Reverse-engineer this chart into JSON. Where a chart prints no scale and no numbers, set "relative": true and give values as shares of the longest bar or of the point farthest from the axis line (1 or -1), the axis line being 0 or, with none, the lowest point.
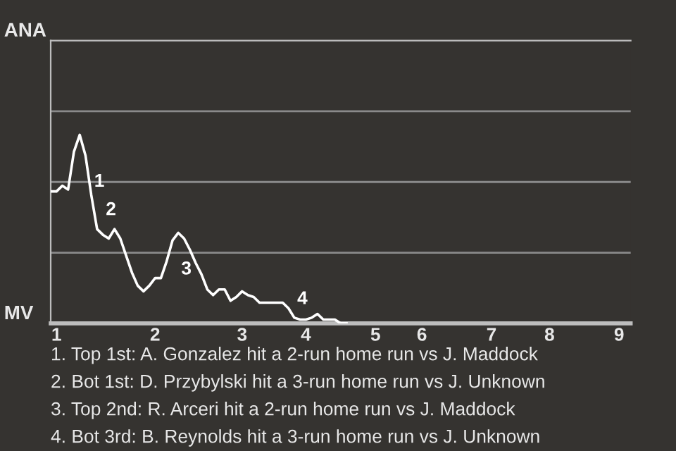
{
  "chart_data": {
    "type": "line",
    "relative": true,
    "categories": [
      null,
      "1",
      null,
      null,
      null,
      null,
      null,
      null,
      null,
      null,
      null,
      null,
      null,
      null,
      null,
      null,
      null,
      null,
      "2",
      null,
      null,
      null,
      null,
      null,
      null,
      null,
      null,
      null,
      null,
      null,
      null,
      null,
      null,
      "3",
      null,
      null,
      null,
      null,
      null,
      null,
      null,
      null,
      null,
      null,
      "4",
      null,
      null,
      null,
      null,
      null,
      null,
      null,
      null,
      null,
      null,
      null,
      "5",
      null,
      null,
      null,
      null,
      null,
      null,
      null,
      "6",
      null,
      null,
      null,
      null,
      null,
      null,
      null,
      null,
      null,
      null,
      null,
      "7",
      null,
      null,
      null,
      null,
      null,
      null,
      null,
      null,
      null,
      "8",
      null,
      null,
      null,
      null,
      null,
      null,
      null,
      null,
      null,
      null,
      null,
      "9",
      null,
      null
    ],
    "series": [
      {
        "color": "#ffffff",
        "values": [
          0.7,
          0.7,
          0.73,
          0.71,
          0.91,
          1.0,
          0.89,
          0.68,
          0.5,
          0.47,
          0.45,
          0.5,
          0.45,
          0.36,
          0.27,
          0.2,
          0.17,
          0.2,
          0.24,
          0.24,
          0.33,
          0.44,
          0.48,
          0.45,
          0.39,
          0.32,
          0.26,
          0.18,
          0.15,
          0.18,
          0.18,
          0.12,
          0.14,
          0.17,
          0.15,
          0.14,
          0.11,
          0.11,
          0.11,
          0.11,
          0.11,
          0.08,
          0.03,
          0.02,
          0.02,
          0.03,
          0.05,
          0.02,
          0.02,
          0.02,
          0.0,
          0.0,
          null,
          null,
          null,
          null,
          null,
          null,
          null,
          null,
          null,
          null,
          null,
          null,
          null,
          null,
          null,
          null,
          null,
          null,
          null,
          null,
          null,
          null,
          null,
          null,
          null,
          null,
          null,
          null,
          null,
          null,
          null,
          null,
          null,
          null,
          null,
          null,
          null,
          null,
          null,
          null,
          null,
          null,
          null,
          null,
          null,
          null,
          null,
          null,
          null
        ]
      }
    ],
    "ref_lines": [
      {
        "axis": "y",
        "value": 0.375,
        "color": "#8a8a8a"
      },
      {
        "axis": "y",
        "value": 0.75,
        "color": "#8a8a8a"
      },
      {
        "axis": "y",
        "value": 1.125,
        "color": "#8a8a8a"
      }
    ],
    "annotations": [
      "1",
      "2",
      "3",
      "4",
      "1. Top 1st: A. Gonzalez hit a 2-run home run vs J. Maddock",
      "2. Bot 1st: D. Przybylski hit a 3-run home run vs J. Unknown",
      "3. Top 2nd: R. Arceri hit a 2-run home run vs J. Maddock",
      "4. Bot 3rd: B. Reynolds hit a 3-run home run vs J. Unknown",
      "ANA",
      "MV"
    ]
  }
}
